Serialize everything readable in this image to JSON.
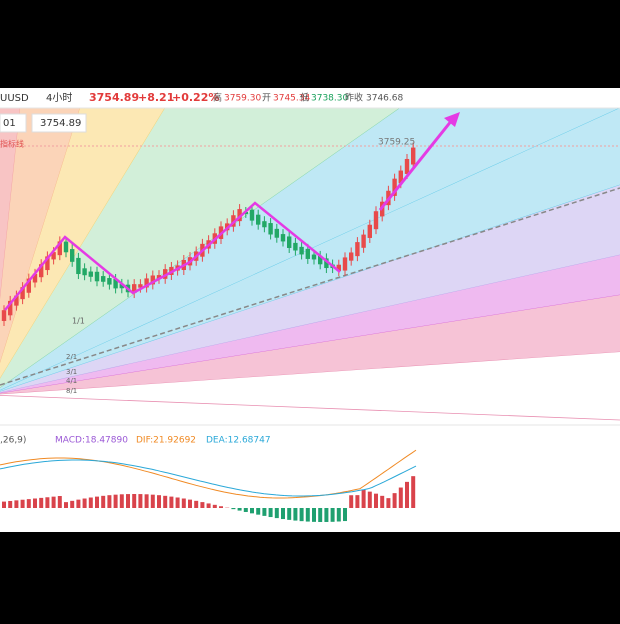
{
  "toolbar": {
    "symbol": "UUSD",
    "interval": "4小时",
    "price": "3754.89",
    "change": "+8.21",
    "change_pct": "+0.22%",
    "high_label": "高",
    "high": "3759.30",
    "open_label": "开",
    "open": "3745.34",
    "low_label": "低",
    "low": "3738.30",
    "prev_close_label": "昨收",
    "prev_close": "3746.68"
  },
  "price_box": {
    "left": "01",
    "price": "3754.89"
  },
  "indicator_note": "指标线",
  "last_price_label": "3759.25",
  "fan_labels": [
    "1/1",
    "2/1",
    "3/1",
    "4/1",
    "8/1"
  ],
  "macd": {
    "params": ",26,9)",
    "macd": "MACD:18.47890",
    "dif": "DIF:21.92692",
    "dea": "DEA:12.68747"
  }
}
